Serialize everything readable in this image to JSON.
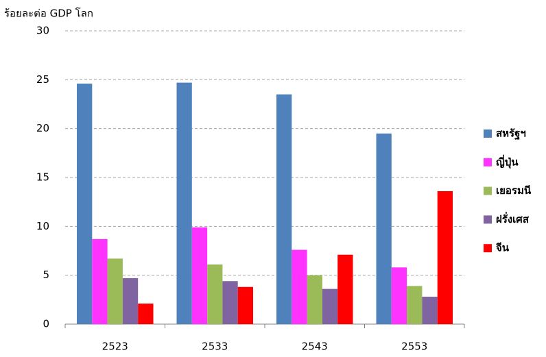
{
  "chart_data": {
    "type": "bar",
    "y_label": "ร้อยละต่อ GDP โลก",
    "categories": [
      "2523",
      "2533",
      "2543",
      "2553"
    ],
    "series": [
      {
        "name": "สหรัฐฯ",
        "color": "#4f81bd",
        "values": [
          24.6,
          24.7,
          23.5,
          19.5
        ]
      },
      {
        "name": "ญี่ปุ่น",
        "color": "#ff33ff",
        "values": [
          8.7,
          9.9,
          7.6,
          5.8
        ]
      },
      {
        "name": "เยอรมนี",
        "color": "#9bbb59",
        "values": [
          6.7,
          6.1,
          5.0,
          3.9
        ]
      },
      {
        "name": "ฝรั่งเศส",
        "color": "#8064a2",
        "values": [
          4.7,
          4.4,
          3.6,
          2.8
        ]
      },
      {
        "name": "จีน",
        "color": "#ff0000",
        "values": [
          2.1,
          3.8,
          7.1,
          13.6
        ]
      }
    ],
    "ylim": [
      0,
      30
    ],
    "yticks": [
      0,
      5,
      10,
      15,
      20,
      25,
      30
    ],
    "grid": true,
    "legend": "right"
  }
}
